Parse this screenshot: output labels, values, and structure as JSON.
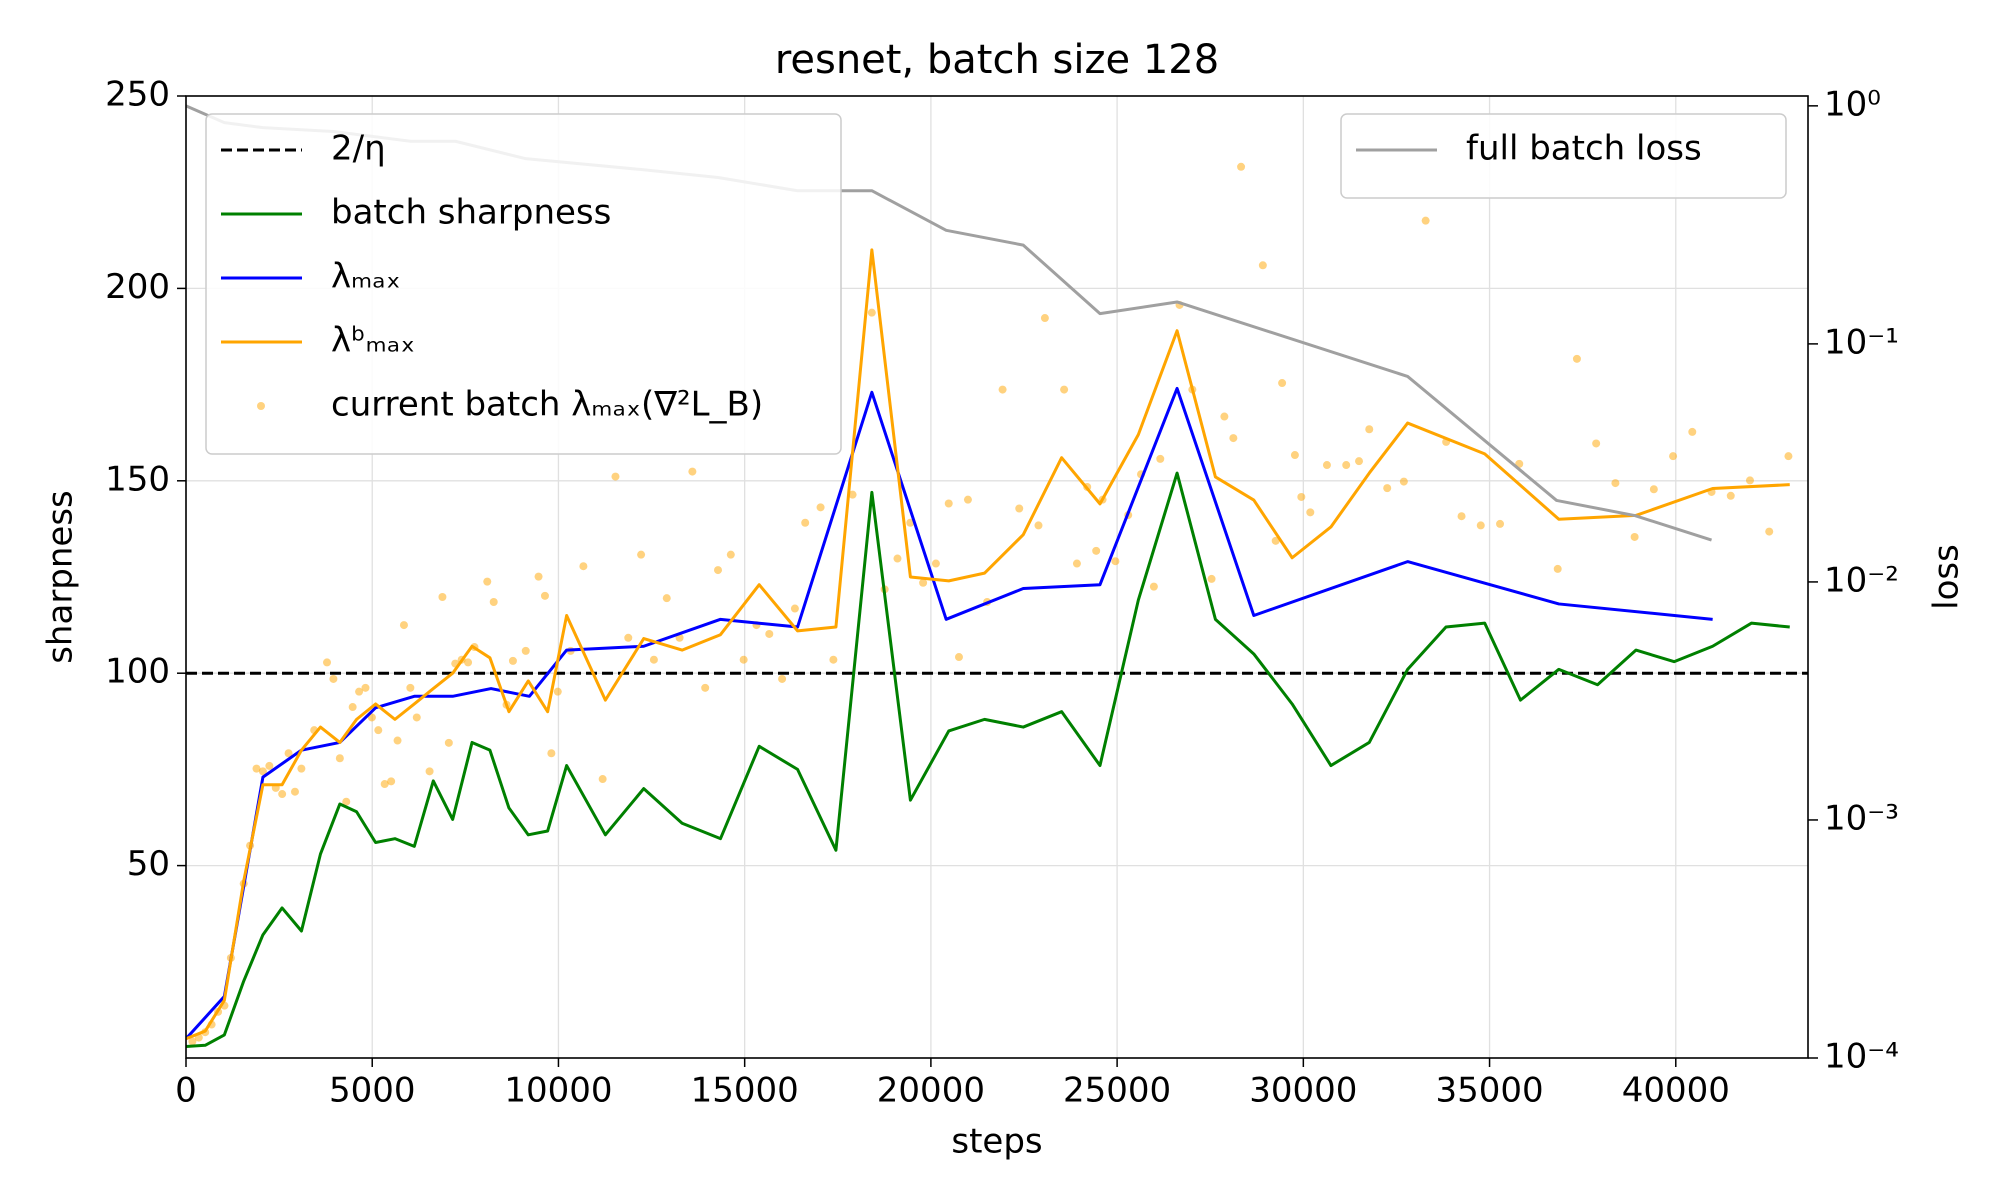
{
  "chart_data": {
    "type": "line",
    "title": "resnet, batch size 128",
    "xlabel": "steps",
    "ylabel": "sharpness",
    "y2label": "loss",
    "xlim": [
      0,
      43550
    ],
    "ylim": [
      0,
      250
    ],
    "y2lim": [
      0.0001,
      1.1
    ],
    "y2log": true,
    "grid": true,
    "legend": "upper left",
    "legend2": "upper right",
    "xticks": [
      0,
      5000,
      10000,
      15000,
      20000,
      25000,
      30000,
      35000,
      40000
    ],
    "yticks": [
      50,
      100,
      150,
      200,
      250
    ],
    "y2ticks": [
      {
        "value": 0.0001,
        "label": "10⁻⁴"
      },
      {
        "value": 0.001,
        "label": "10⁻³"
      },
      {
        "value": 0.01,
        "label": "10⁻²"
      },
      {
        "value": 0.1,
        "label": "10⁻¹"
      },
      {
        "value": 1,
        "label": "10⁰"
      }
    ],
    "reference_line": {
      "name": "2/η",
      "value": 100,
      "color": "#000000",
      "dashed": true
    },
    "series": [
      {
        "name": "batch sharpness",
        "type": "line",
        "color": "#008000",
        "x": [
          0,
          516,
          1030,
          1550,
          2065,
          2580,
          3100,
          3610,
          4130,
          4580,
          5090,
          5610,
          6130,
          6640,
          7160,
          7680,
          8160,
          8670,
          9190,
          9710,
          10220,
          11260,
          12290,
          13320,
          14350,
          15390,
          16420,
          17450,
          18415,
          19450,
          20480,
          21440,
          22480,
          23510,
          24540,
          25570,
          26610,
          27640,
          28670,
          29700,
          30740,
          31770,
          32800,
          33830,
          34870,
          35830,
          36860,
          37900,
          38930,
          39960,
          40990,
          42030,
          43060
        ],
        "values": [
          3,
          3.3,
          6,
          20,
          32,
          39,
          33,
          53,
          66,
          64,
          56,
          57,
          55,
          72,
          62,
          82,
          80,
          65,
          58,
          59,
          76,
          58,
          70,
          61,
          57,
          81,
          75,
          54,
          147,
          67,
          85,
          88,
          86,
          90,
          76,
          119,
          152,
          114,
          105,
          92,
          76,
          82,
          101,
          112,
          113,
          93,
          101,
          97,
          106,
          103,
          107,
          113,
          112
        ]
      },
      {
        "name": "λₘₐₓ",
        "type": "line",
        "color": "#0000ff",
        "x": [
          0,
          1030,
          2065,
          3100,
          4130,
          5090,
          6130,
          7160,
          8190,
          9220,
          10220,
          12290,
          14350,
          16420,
          18415,
          20410,
          22480,
          24540,
          26610,
          28670,
          32800,
          36860,
          40990
        ],
        "values": [
          5,
          16,
          73,
          80,
          82,
          91,
          94,
          94,
          96,
          94,
          106,
          107,
          114,
          112,
          173,
          114,
          122,
          123,
          174,
          115,
          129,
          118,
          114
        ]
      },
      {
        "name": "λᵇₘₐₓ",
        "type": "line",
        "color": "#ffa500",
        "x": [
          0,
          516,
          1030,
          1550,
          2065,
          2580,
          3100,
          3610,
          4130,
          4580,
          5090,
          5610,
          6130,
          6640,
          7160,
          7680,
          8160,
          8670,
          9190,
          9710,
          10220,
          11260,
          12290,
          13320,
          14350,
          15390,
          16420,
          17450,
          18415,
          19450,
          20480,
          21440,
          22480,
          23510,
          24540,
          25570,
          26610,
          27640,
          28670,
          29700,
          30740,
          31770,
          32800,
          34870,
          36860,
          38930,
          40990,
          43060
        ],
        "values": [
          5,
          7,
          15,
          46,
          71,
          71,
          80,
          86,
          82,
          88,
          92,
          88,
          92,
          96,
          100,
          107,
          104,
          90,
          98,
          90,
          115,
          93,
          109,
          106,
          110,
          123,
          111,
          112,
          210,
          125,
          124,
          126,
          136,
          156,
          144,
          162,
          189,
          151,
          145,
          130,
          138,
          152,
          165,
          157,
          140,
          141,
          148,
          149
        ]
      },
      {
        "name": "current batch λₘₐₓ(∇²L_B)",
        "type": "scatter",
        "color": "#ffa500",
        "x": [
          172,
          344,
          516,
          688,
          861,
          1033,
          1205,
          1549,
          1721,
          1893,
          2065,
          2238,
          2410,
          2582,
          2754,
          2926,
          3098,
          3442,
          3786,
          3958,
          4131,
          4303,
          4475,
          4647,
          4819,
          4991,
          5163,
          5335,
          5508,
          5680,
          5852,
          6024,
          6196,
          6540,
          6885,
          7057,
          7229,
          7401,
          7573,
          7745,
          8089,
          8262,
          8606,
          8778,
          9122,
          9466,
          9638,
          9810,
          9982,
          10326,
          10670,
          11187,
          11531,
          11875,
          12219,
          12563,
          12908,
          13252,
          13596,
          13940,
          14284,
          14628,
          14973,
          15317,
          15661,
          16005,
          16349,
          16625,
          17038,
          17382,
          17898,
          18414,
          18758,
          19103,
          19447,
          19791,
          20135,
          20479,
          20754,
          20995,
          21511,
          21925,
          22372,
          22889,
          23061,
          23577,
          23921,
          24197,
          24438,
          24610,
          24954,
          25298,
          25642,
          25987,
          26159,
          26676,
          27020,
          27536,
          27880,
          28121,
          28328,
          28913,
          29258,
          29430,
          29774,
          29946,
          30187,
          30634,
          31151,
          31495,
          31770,
          32252,
          32699,
          33284,
          33835,
          34248,
          34764,
          35281,
          35797,
          36830,
          37346,
          37862,
          38379,
          38895,
          39411,
          39927,
          40443,
          40960,
          41476,
          41992,
          42509,
          43025
        ],
        "values": [
          4.3,
          5.3,
          6.7,
          8.7,
          12.0,
          13.6,
          26.0,
          45.3,
          55.2,
          75.2,
          74.5,
          75.9,
          70.2,
          68.6,
          79.2,
          69.2,
          75.2,
          85.2,
          102.8,
          98.5,
          77.9,
          66.6,
          91.2,
          95.2,
          96.2,
          88.5,
          85.2,
          71.2,
          71.9,
          82.5,
          112.5,
          96.2,
          88.5,
          74.5,
          119.8,
          81.9,
          102.5,
          103.5,
          102.8,
          106.8,
          123.8,
          118.5,
          91.8,
          103.2,
          105.8,
          125.1,
          120.1,
          79.2,
          95.2,
          105.8,
          127.8,
          72.5,
          151.1,
          109.2,
          130.8,
          103.5,
          119.5,
          109.2,
          152.4,
          96.2,
          126.8,
          130.8,
          103.5,
          112.5,
          110.2,
          98.5,
          116.8,
          139.1,
          143.1,
          103.5,
          146.4,
          193.7,
          121.8,
          129.8,
          139.1,
          123.5,
          128.5,
          144.1,
          104.2,
          145.1,
          118.5,
          173.7,
          142.8,
          138.4,
          192.3,
          173.7,
          128.5,
          148.4,
          131.8,
          145.1,
          129.1,
          141.1,
          151.7,
          122.5,
          155.7,
          195.7,
          173.7,
          124.5,
          166.7,
          161.1,
          231.6,
          206.0,
          134.4,
          175.4,
          156.7,
          145.8,
          141.8,
          154.1,
          154.1,
          155.1,
          163.4,
          148.1,
          149.8,
          217.6,
          160.1,
          140.8,
          138.4,
          138.8,
          154.4,
          127.1,
          181.7,
          159.7,
          149.4,
          135.4,
          147.8,
          156.4,
          162.7,
          147.1,
          146.1,
          150.1,
          136.8,
          156.4
        ]
      },
      {
        "name": "full batch loss",
        "type": "line",
        "color": "#a0a0a0",
        "axis": "y2",
        "x": [
          0,
          1030,
          2065,
          3960,
          6025,
          7230,
          9120,
          12220,
          14285,
          16420,
          18415,
          20410,
          22480,
          24540,
          26610,
          32800,
          36800,
          38900,
          40960
        ],
        "values": [
          1.0,
          0.85,
          0.81,
          0.78,
          0.71,
          0.71,
          0.6,
          0.54,
          0.5,
          0.44,
          0.44,
          0.3,
          0.26,
          0.134,
          0.15,
          0.073,
          0.022,
          0.019,
          0.015
        ]
      }
    ]
  }
}
